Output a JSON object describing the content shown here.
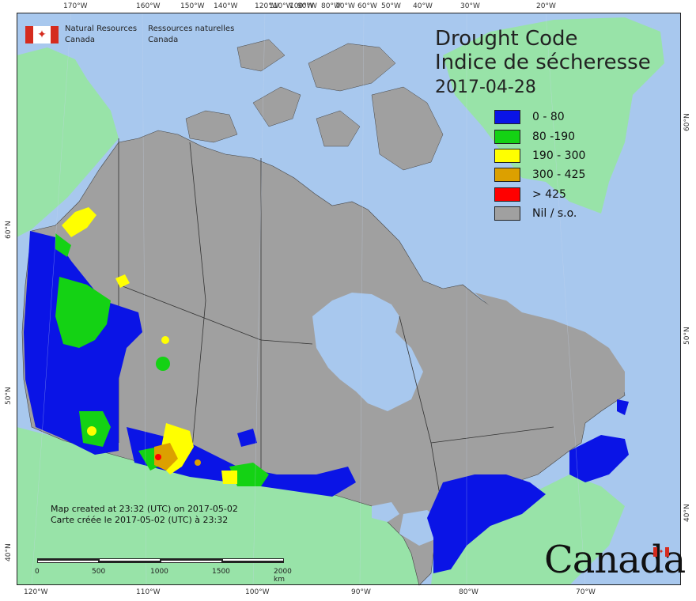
{
  "title": {
    "line1": "Drought Code",
    "line2": "Indice de sécheresse",
    "date": "2017-04-28"
  },
  "agency": {
    "en_line1": "Natural Resources",
    "en_line2": "Canada",
    "fr_line1": "Ressources naturelles",
    "fr_line2": "Canada"
  },
  "legend": [
    {
      "label": "0 - 80",
      "color": "#0a14e6"
    },
    {
      "label": "80 -190",
      "color": "#14d214"
    },
    {
      "label": "190 - 300",
      "color": "#ffff00"
    },
    {
      "label": "300 - 425",
      "color": "#dca000"
    },
    {
      "label": "> 425",
      "color": "#ff0000"
    },
    {
      "label": "Nil / s.o.",
      "color": "#a0a0a0"
    }
  ],
  "colors": {
    "ocean": "#a8c8ee",
    "land_other": "#98e3a8",
    "canada_nil": "#a0a0a0",
    "border": "#333333"
  },
  "created": {
    "en": "Map created at 23:32 (UTC) on 2017-05-02",
    "fr": "Carte créée le 2017-05-02 (UTC) à 23:32"
  },
  "scalebar": {
    "labels": [
      "0",
      "500",
      "1000",
      "1500",
      "2000  km"
    ]
  },
  "wordmark": "Canada",
  "graticule": {
    "top": [
      "170°W",
      "160°W",
      "150°W",
      "140°W",
      "120°W",
      "110°W",
      "100°W",
      "90°W",
      "80°W",
      "70°W",
      "60°W",
      "50°W",
      "40°W",
      "30°W",
      "20°W"
    ],
    "bottom": [
      "120°W",
      "110°W",
      "100°W",
      "90°W",
      "80°W",
      "70°W"
    ],
    "left": [
      "60°N",
      "50°N",
      "40°N"
    ],
    "right": [
      "60°N",
      "50°N",
      "40°N"
    ]
  }
}
